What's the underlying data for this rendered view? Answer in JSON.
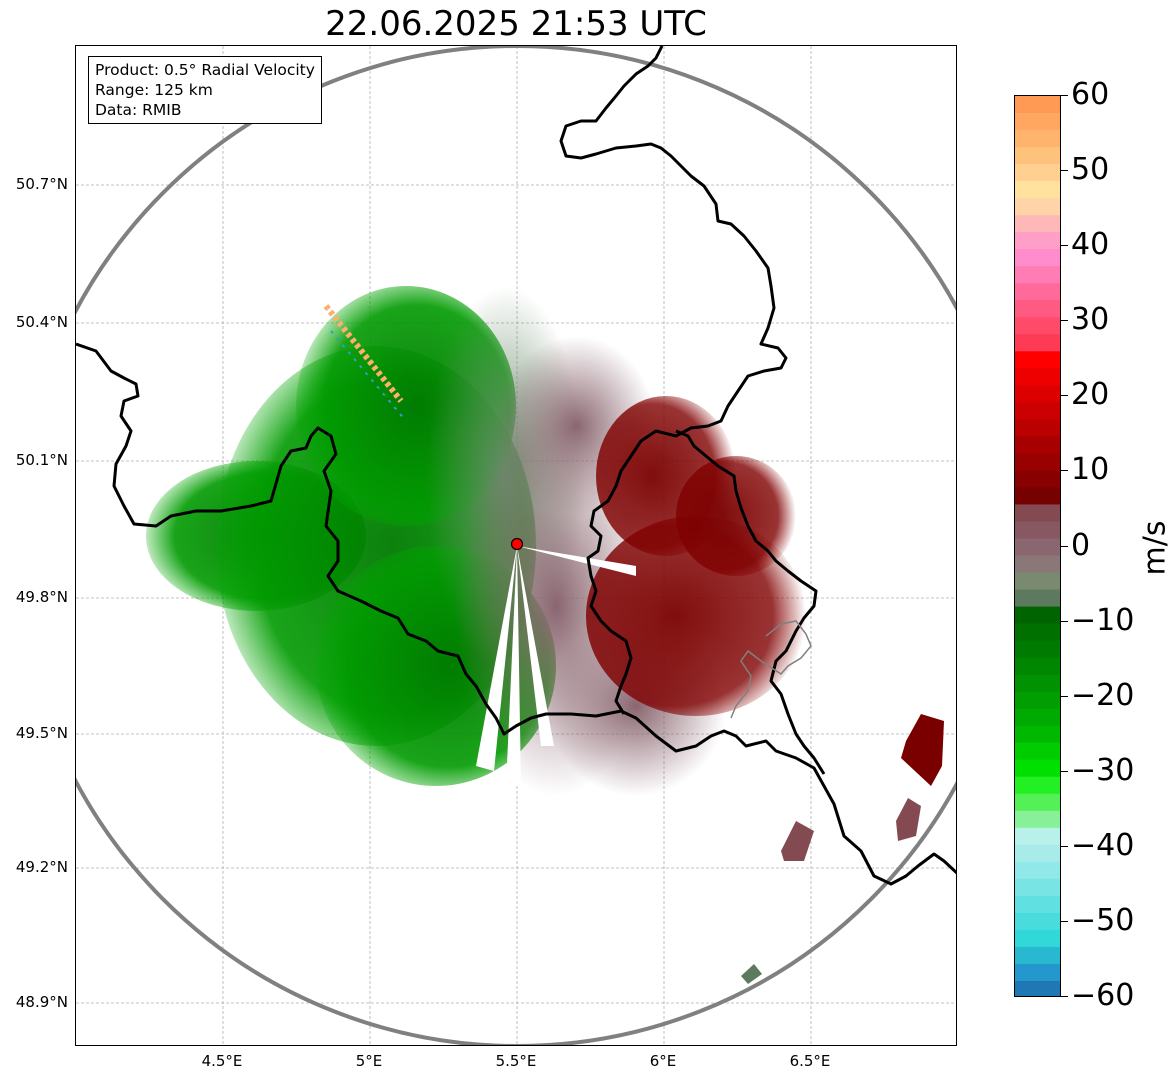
{
  "title": "22.06.2025 21:53 UTC",
  "info_box": {
    "product": "Product: 0.5° Radial Velocity",
    "range": "Range: 125 km",
    "data": "Data: RMIB"
  },
  "map": {
    "lat_labels": [
      "50.7°N",
      "50.4°N",
      "50.1°N",
      "49.8°N",
      "49.5°N",
      "49.2°N",
      "48.9°N"
    ],
    "lon_labels": [
      "4.5°E",
      "5°E",
      "5.5°E",
      "6°E",
      "6.5°E"
    ],
    "radar_site": {
      "lon": 5.5,
      "lat": 49.91,
      "marker_color": "#ff0000"
    },
    "range_ring_color": "#808080",
    "border_color": "#000000",
    "grid": true
  },
  "colorbar": {
    "unit": "m/s",
    "min": -60,
    "max": 60,
    "ticks": [
      "60",
      "50",
      "40",
      "30",
      "20",
      "10",
      "0",
      "−10",
      "−20",
      "−30",
      "−40",
      "−50",
      "−60"
    ],
    "palette_top_to_bottom": [
      "#ff9a55",
      "#ffa660",
      "#ffb46e",
      "#ffc27c",
      "#ffd08f",
      "#ffe29e",
      "#ffd4a8",
      "#ffb8b8",
      "#ff9ec6",
      "#ff8ccc",
      "#ff7cb4",
      "#ff6a9a",
      "#ff5a82",
      "#ff4a6a",
      "#ff3a54",
      "#ff0000",
      "#ee0000",
      "#dd0000",
      "#cc0000",
      "#bb0000",
      "#a80000",
      "#990000",
      "#880000",
      "#770000",
      "#844a52",
      "#885862",
      "#8a6670",
      "#8a7878",
      "#7a8a70",
      "#5e7a5e",
      "#006400",
      "#007000",
      "#007a00",
      "#008600",
      "#009200",
      "#009e00",
      "#00aa00",
      "#00b800",
      "#00cc00",
      "#00e000",
      "#22f022",
      "#55f055",
      "#88f098",
      "#b8f0ea",
      "#a8ecea",
      "#90e8e8",
      "#78e4e4",
      "#60e0e0",
      "#48dcdc",
      "#30d8d8",
      "#28b8d0",
      "#2498cc",
      "#1f78b4"
    ]
  }
}
